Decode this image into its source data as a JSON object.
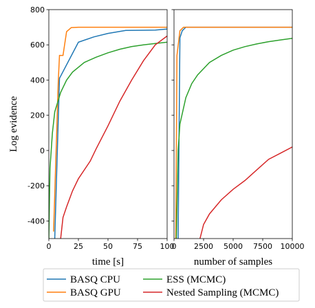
{
  "chart_data": [
    {
      "type": "line",
      "xlabel": "time [s]",
      "ylabel": "Log evidence",
      "xlim": [
        0,
        100
      ],
      "xticks": [
        0,
        25,
        50,
        75,
        100
      ],
      "ylim": [
        -500,
        800
      ],
      "yticks": [
        -400,
        -200,
        0,
        200,
        400,
        600,
        800
      ],
      "series": [
        {
          "name": "BASQ CPU",
          "color": "#1f77b4",
          "x": [
            5,
            9,
            25,
            38,
            50,
            65,
            80,
            90,
            100
          ],
          "values": [
            -500,
            410,
            615,
            645,
            665,
            682,
            683,
            684,
            690
          ]
        },
        {
          "name": "BASQ GPU",
          "color": "#ff7f0e",
          "x": [
            4,
            8,
            9,
            12,
            15,
            19,
            25,
            100
          ],
          "values": [
            -460,
            400,
            540,
            540,
            675,
            698,
            700,
            700
          ]
        },
        {
          "name": "ESS (MCMC)",
          "color": "#2ca02c",
          "x": [
            0,
            1,
            3,
            5,
            10,
            15,
            20,
            30,
            40,
            50,
            60,
            70,
            80,
            90,
            100
          ],
          "values": [
            -500,
            -100,
            100,
            220,
            330,
            400,
            445,
            500,
            530,
            555,
            575,
            590,
            600,
            608,
            615
          ]
        },
        {
          "name": "Nested Sampling (MCMC)",
          "color": "#d62728",
          "x": [
            10,
            12,
            15,
            20,
            25,
            35,
            40,
            50,
            60,
            70,
            80,
            90,
            100
          ],
          "values": [
            -500,
            -380,
            -320,
            -230,
            -160,
            -60,
            10,
            140,
            280,
            400,
            510,
            600,
            650
          ]
        }
      ]
    },
    {
      "type": "line",
      "xlabel": "number of samples",
      "xlim": [
        0,
        10000
      ],
      "xticks": [
        0,
        2500,
        5000,
        7500,
        10000
      ],
      "ylim": [
        -500,
        800
      ],
      "yticks": [
        -400,
        -200,
        0,
        200,
        400,
        600,
        800
      ],
      "series": [
        {
          "color": "#1f77b4",
          "x": [
            350,
            500,
            700,
            1000,
            10000
          ],
          "values": [
            -500,
            640,
            680,
            700,
            700
          ]
        },
        {
          "color": "#ff7f0e",
          "x": [
            150,
            250,
            500,
            800,
            10000
          ],
          "values": [
            -500,
            540,
            680,
            700,
            700
          ]
        },
        {
          "color": "#2ca02c",
          "x": [
            200,
            350,
            500,
            1000,
            1500,
            2000,
            3000,
            4000,
            5000,
            6000,
            7000,
            8000,
            9000,
            10000
          ],
          "values": [
            -500,
            0,
            150,
            300,
            380,
            430,
            500,
            540,
            570,
            590,
            605,
            618,
            628,
            637
          ]
        },
        {
          "color": "#d62728",
          "x": [
            2200,
            2500,
            3000,
            3500,
            4000,
            5000,
            6000,
            7000,
            8000,
            9000,
            10000
          ],
          "values": [
            -500,
            -420,
            -360,
            -320,
            -280,
            -220,
            -170,
            -110,
            -50,
            -15,
            20
          ]
        }
      ]
    }
  ]
}
